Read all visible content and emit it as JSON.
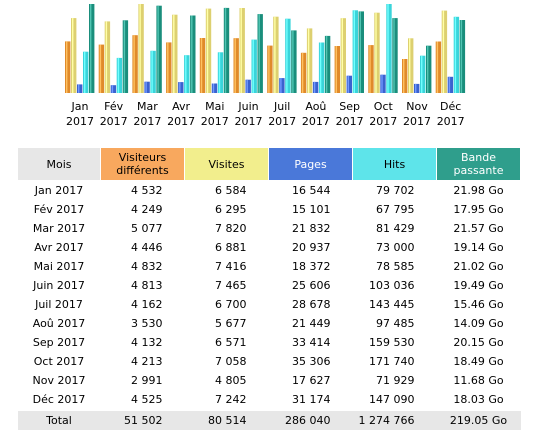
{
  "colors": {
    "visiteurs": "#e08a2a",
    "visites": "#ddd070",
    "pages": "#3a62cf",
    "hits": "#3ad4da",
    "bande": "#1a8e7c"
  },
  "months": [
    {
      "mois": "Jan 2017",
      "label": "Jan",
      "year": "2017",
      "visiteurs": "4 532",
      "visites": "6 584",
      "pages": "16 544",
      "hits": "79 702",
      "bande": "21.98 Go"
    },
    {
      "mois": "Fév 2017",
      "label": "Fév",
      "year": "2017",
      "visiteurs": "4 249",
      "visites": "6 295",
      "pages": "15 101",
      "hits": "67 795",
      "bande": "17.95 Go"
    },
    {
      "mois": "Mar 2017",
      "label": "Mar",
      "year": "2017",
      "visiteurs": "5 077",
      "visites": "7 820",
      "pages": "21 832",
      "hits": "81 429",
      "bande": "21.57 Go"
    },
    {
      "mois": "Avr 2017",
      "label": "Avr",
      "year": "2017",
      "visiteurs": "4 446",
      "visites": "6 881",
      "pages": "20 937",
      "hits": "73 000",
      "bande": "19.14 Go"
    },
    {
      "mois": "Mai 2017",
      "label": "Mai",
      "year": "2017",
      "visiteurs": "4 832",
      "visites": "7 416",
      "pages": "18 372",
      "hits": "78 585",
      "bande": "21.02 Go"
    },
    {
      "mois": "Juin 2017",
      "label": "Juin",
      "year": "2017",
      "visiteurs": "4 813",
      "visites": "7 465",
      "pages": "25 606",
      "hits": "103 036",
      "bande": "19.49 Go"
    },
    {
      "mois": "Juil 2017",
      "label": "Juil",
      "year": "2017",
      "visiteurs": "4 162",
      "visites": "6 700",
      "pages": "28 678",
      "hits": "143 445",
      "bande": "15.46 Go"
    },
    {
      "mois": "Aoû 2017",
      "label": "Aoû",
      "year": "2017",
      "visiteurs": "3 530",
      "visites": "5 677",
      "pages": "21 449",
      "hits": "97 485",
      "bande": "14.09 Go"
    },
    {
      "mois": "Sep 2017",
      "label": "Sep",
      "year": "2017",
      "visiteurs": "4 132",
      "visites": "6 571",
      "pages": "33 414",
      "hits": "159 530",
      "bande": "20.15 Go"
    },
    {
      "mois": "Oct 2017",
      "label": "Oct",
      "year": "2017",
      "visiteurs": "4 213",
      "visites": "7 058",
      "pages": "35 306",
      "hits": "171 740",
      "bande": "18.49 Go"
    },
    {
      "mois": "Nov 2017",
      "label": "Nov",
      "year": "2017",
      "visiteurs": "2 991",
      "visites": "4 805",
      "pages": "17 627",
      "hits": "71 929",
      "bande": "11.68 Go"
    },
    {
      "mois": "Déc 2017",
      "label": "Déc",
      "year": "2017",
      "visiteurs": "4 525",
      "visites": "7 242",
      "pages": "31 174",
      "hits": "147 090",
      "bande": "18.03 Go"
    }
  ],
  "table": {
    "headers": {
      "mois": "Mois",
      "visiteurs_1": "Visiteurs",
      "visiteurs_2": "différents",
      "visites": "Visites",
      "pages": "Pages",
      "hits": "Hits",
      "bande_1": "Bande",
      "bande_2": "passante"
    },
    "total": {
      "label": "Total",
      "visiteurs": "51 502",
      "visites": "80 514",
      "pages": "286 040",
      "hits": "1 274 766",
      "bande": "219.05 Go"
    }
  }
}
